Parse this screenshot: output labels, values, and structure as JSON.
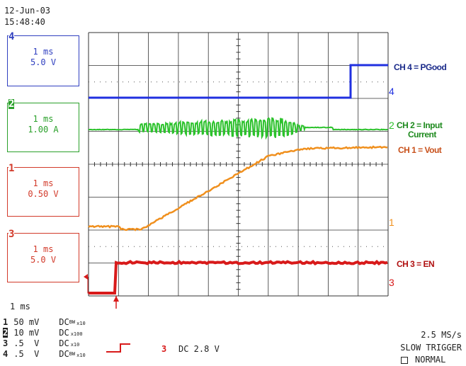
{
  "header": {
    "date": "12-Jun-03",
    "time": "15:48:40"
  },
  "channel_boxes": [
    {
      "number": "4",
      "timebase": "1 ms",
      "scale": "5.0 V",
      "color": "#3040c0"
    },
    {
      "number": "2",
      "timebase": "1 ms",
      "scale": "1.00 A",
      "color": "#2aa02a"
    },
    {
      "number": "1",
      "timebase": "1 ms",
      "scale": "0.50 V",
      "color": "#d23a2a"
    },
    {
      "number": "3",
      "timebase": "1 ms",
      "scale": "5.0 V",
      "color": "#d23a2a"
    }
  ],
  "trace_labels": {
    "ch4": "CH 4 = PGood",
    "ch2_line1": "CH 2 = Input",
    "ch2_line2": "Current",
    "ch1": "CH 1 = Vout",
    "ch3": "CH 3 = EN"
  },
  "right_markers": {
    "ch4": "4",
    "ch2": "2",
    "ch1": "1",
    "ch3": "3"
  },
  "colors": {
    "ch1": "#f0901e",
    "ch2": "#2cc22c",
    "ch3": "#d81a1a",
    "ch4": "#2030e0",
    "grid": "#333333",
    "ch4_label": "#1a2a8a",
    "ch2_label": "#1e8a1e",
    "ch1_label": "#c8501a",
    "ch3_label": "#b01010"
  },
  "timebase": "1 ms",
  "channel_settings": [
    {
      "num": "1",
      "volts": "50 mV",
      "coupling": "DC",
      "bw": "BW",
      "probe": "x10"
    },
    {
      "num": "2",
      "volts": "10 mV",
      "coupling": "DC",
      "bw": "",
      "probe": "x100"
    },
    {
      "num": "3",
      "volts": ".5  V",
      "coupling": "DC",
      "bw": "",
      "probe": "x10"
    },
    {
      "num": "4",
      "volts": ".5  V",
      "coupling": "DC",
      "bw": "BW",
      "probe": "x10"
    }
  ],
  "trigger": {
    "channel": "3",
    "text": "DC 2.8 V"
  },
  "acquisition": {
    "sample_rate": "2.5 MS/s",
    "trigger_mode": "SLOW TRIGGER",
    "normal": "NORMAL"
  }
}
